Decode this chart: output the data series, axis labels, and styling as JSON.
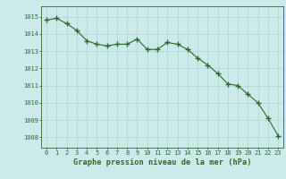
{
  "x": [
    0,
    1,
    2,
    3,
    4,
    5,
    6,
    7,
    8,
    9,
    10,
    11,
    12,
    13,
    14,
    15,
    16,
    17,
    18,
    19,
    20,
    21,
    22,
    23
  ],
  "y": [
    1014.8,
    1014.9,
    1014.6,
    1014.2,
    1013.6,
    1013.4,
    1013.3,
    1013.4,
    1013.4,
    1013.7,
    1013.1,
    1013.1,
    1013.5,
    1013.4,
    1013.1,
    1012.6,
    1012.2,
    1011.7,
    1011.1,
    1011.0,
    1010.5,
    1010.0,
    1009.1,
    1008.1
  ],
  "line_color": "#2d6a2d",
  "marker_color": "#2d6a2d",
  "bg_color": "#cceaea",
  "grid_color": "#aad4d4",
  "xlabel": "Graphe pression niveau de la mer (hPa)",
  "xlabel_color": "#2d6a2d",
  "ylabel_ticks": [
    1008,
    1009,
    1010,
    1011,
    1012,
    1013,
    1014,
    1015
  ],
  "xlim": [
    -0.5,
    23.5
  ],
  "ylim": [
    1007.4,
    1015.6
  ],
  "tick_fontsize": 5.0,
  "xlabel_fontsize": 6.2
}
